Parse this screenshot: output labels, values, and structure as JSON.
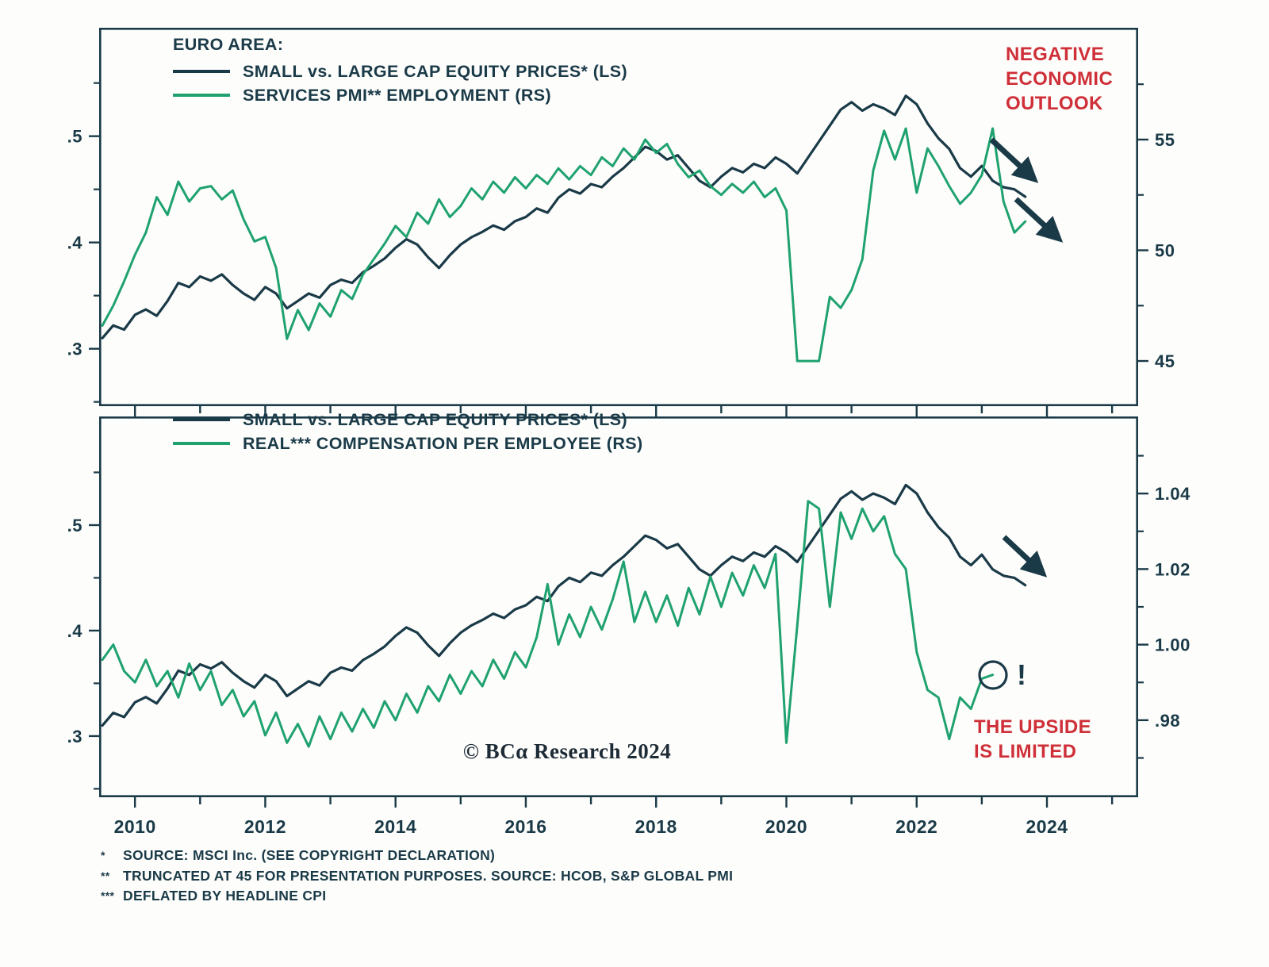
{
  "colors": {
    "frame": "#1a3a48",
    "dark": "#1a3a48",
    "green": "#1fa26f",
    "red": "#cf2f38",
    "watermark": "#1d2b36"
  },
  "watermark": "© BCα Research 2024",
  "annotations": {
    "negative_outlook": [
      "NEGATIVE",
      "ECONOMIC",
      "OUTLOOK"
    ],
    "upside_limited": [
      "THE UPSIDE",
      "IS LIMITED"
    ],
    "exclamation": "!"
  },
  "footnotes": [
    {
      "marker": "*",
      "text": "SOURCE: MSCI Inc. (SEE COPYRIGHT DECLARATION)"
    },
    {
      "marker": "**",
      "text": "TRUNCATED AT 45 FOR PRESENTATION PURPOSES. SOURCE: HCOB, S&P GLOBAL PMI"
    },
    {
      "marker": "***",
      "text": "DEFLATED BY HEADLINE CPI"
    }
  ],
  "chart_data": [
    {
      "type": "line",
      "panel": "top",
      "title": "EURO AREA:",
      "grid": false,
      "legend_position": "top-left",
      "x_range": [
        2009.45,
        2025.4
      ],
      "x_ticks": [
        2010,
        2012,
        2014,
        2016,
        2018,
        2020,
        2022,
        2024
      ],
      "x_minor_ticks": [
        2010,
        2011,
        2012,
        2013,
        2014,
        2015,
        2016,
        2017,
        2018,
        2019,
        2020,
        2021,
        2022,
        2023,
        2024,
        2025
      ],
      "left_axis": {
        "range": [
          0.246,
          0.602
        ],
        "ticks": [
          0.5,
          0.4,
          0.3
        ],
        "labels": [
          ".5",
          ".4",
          ".3"
        ],
        "minor_ticks": [
          0.55,
          0.45,
          0.35,
          0.25
        ]
      },
      "right_axis": {
        "range": [
          42.96,
          60.05
        ],
        "ticks": [
          55,
          50,
          45
        ],
        "labels": [
          "55",
          "50",
          "45"
        ],
        "minor_ticks": [
          57.5,
          52.5,
          47.5
        ]
      },
      "series": [
        {
          "name": "SMALL vs. LARGE CAP EQUITY PRICES* (LS)",
          "axis": "left",
          "color": "dark",
          "data_name": "equity-ratio-line-top",
          "x_start": 2009.5,
          "x_step": 0.16667,
          "values": [
            0.31,
            0.322,
            0.318,
            0.332,
            0.337,
            0.331,
            0.345,
            0.362,
            0.358,
            0.368,
            0.364,
            0.37,
            0.36,
            0.352,
            0.346,
            0.358,
            0.352,
            0.338,
            0.345,
            0.352,
            0.348,
            0.36,
            0.365,
            0.362,
            0.372,
            0.378,
            0.385,
            0.395,
            0.403,
            0.398,
            0.386,
            0.376,
            0.388,
            0.398,
            0.405,
            0.41,
            0.416,
            0.412,
            0.42,
            0.424,
            0.432,
            0.428,
            0.442,
            0.45,
            0.446,
            0.455,
            0.452,
            0.462,
            0.47,
            0.48,
            0.49,
            0.486,
            0.478,
            0.482,
            0.47,
            0.458,
            0.452,
            0.462,
            0.47,
            0.466,
            0.474,
            0.47,
            0.48,
            0.474,
            0.465,
            0.48,
            0.495,
            0.51,
            0.525,
            0.532,
            0.524,
            0.53,
            0.526,
            0.52,
            0.538,
            0.53,
            0.512,
            0.498,
            0.488,
            0.47,
            0.462,
            0.472,
            0.458,
            0.452,
            0.45,
            0.443
          ]
        },
        {
          "name": "SERVICES PMI** EMPLOYMENT (RS)",
          "axis": "right",
          "color": "green",
          "data_name": "services-pmi-line",
          "x_start": 2009.5,
          "x_step": 0.16667,
          "values": [
            46.6,
            47.5,
            48.6,
            49.8,
            50.8,
            52.4,
            51.6,
            53.1,
            52.2,
            52.8,
            52.9,
            52.3,
            52.7,
            51.4,
            50.4,
            50.6,
            49.2,
            46.0,
            47.3,
            46.4,
            47.6,
            47.0,
            48.2,
            47.8,
            48.9,
            49.6,
            50.3,
            51.1,
            50.6,
            51.7,
            51.2,
            52.3,
            51.5,
            52.0,
            52.8,
            52.3,
            53.1,
            52.6,
            53.3,
            52.8,
            53.4,
            53.0,
            53.7,
            53.2,
            53.8,
            53.4,
            54.2,
            53.8,
            54.6,
            54.1,
            55.0,
            54.4,
            54.8,
            53.9,
            53.3,
            53.6,
            52.9,
            52.5,
            53.0,
            52.6,
            53.1,
            52.4,
            52.8,
            51.8,
            45.0,
            45.0,
            45.0,
            47.9,
            47.4,
            48.2,
            49.6,
            53.6,
            55.4,
            54.1,
            55.5,
            52.6,
            54.6,
            53.8,
            52.9,
            52.1,
            52.6,
            53.4,
            55.5,
            52.2,
            50.8,
            51.3
          ]
        }
      ]
    },
    {
      "type": "line",
      "panel": "bottom",
      "title": "",
      "grid": false,
      "legend_position": "top-left",
      "x_range": [
        2009.45,
        2025.4
      ],
      "x_ticks": [
        2010,
        2012,
        2014,
        2016,
        2018,
        2020,
        2022,
        2024
      ],
      "x_tick_labels": [
        "2010",
        "2012",
        "2014",
        "2016",
        "2018",
        "2020",
        "2022",
        "2024"
      ],
      "x_minor_ticks": [
        2010,
        2011,
        2012,
        2013,
        2014,
        2015,
        2016,
        2017,
        2018,
        2019,
        2020,
        2021,
        2022,
        2023,
        2024,
        2025
      ],
      "left_axis": {
        "range": [
          0.242,
          0.603
        ],
        "ticks": [
          0.5,
          0.4,
          0.3
        ],
        "labels": [
          ".5",
          ".4",
          ".3"
        ],
        "minor_ticks": [
          0.55,
          0.45,
          0.35,
          0.25
        ]
      },
      "right_axis": {
        "range": [
          0.9596,
          1.0604
        ],
        "ticks": [
          1.04,
          1.02,
          1.0,
          0.98
        ],
        "labels": [
          "1.04",
          "1.02",
          "1.00",
          ".98"
        ],
        "minor_ticks": [
          1.05,
          1.03,
          1.01,
          0.99,
          0.97
        ]
      },
      "series": [
        {
          "name": "SMALL vs. LARGE CAP EQUITY PRICES* (LS)",
          "axis": "left",
          "color": "dark",
          "data_name": "equity-ratio-line-bottom",
          "x_start": 2009.5,
          "x_step": 0.16667,
          "values": [
            0.31,
            0.322,
            0.318,
            0.332,
            0.337,
            0.331,
            0.345,
            0.362,
            0.358,
            0.368,
            0.364,
            0.37,
            0.36,
            0.352,
            0.346,
            0.358,
            0.352,
            0.338,
            0.345,
            0.352,
            0.348,
            0.36,
            0.365,
            0.362,
            0.372,
            0.378,
            0.385,
            0.395,
            0.403,
            0.398,
            0.386,
            0.376,
            0.388,
            0.398,
            0.405,
            0.41,
            0.416,
            0.412,
            0.42,
            0.424,
            0.432,
            0.428,
            0.442,
            0.45,
            0.446,
            0.455,
            0.452,
            0.462,
            0.47,
            0.48,
            0.49,
            0.486,
            0.478,
            0.482,
            0.47,
            0.458,
            0.452,
            0.462,
            0.47,
            0.466,
            0.474,
            0.47,
            0.48,
            0.474,
            0.465,
            0.48,
            0.495,
            0.51,
            0.525,
            0.532,
            0.524,
            0.53,
            0.526,
            0.52,
            0.538,
            0.53,
            0.512,
            0.498,
            0.488,
            0.47,
            0.462,
            0.472,
            0.458,
            0.452,
            0.45,
            0.443
          ]
        },
        {
          "name": "REAL*** COMPENSATION PER EMPLOYEE (RS)",
          "axis": "right",
          "color": "green",
          "data_name": "real-compensation-line",
          "x_start": 2009.5,
          "x_step": 0.16667,
          "values": [
            0.996,
            1.0,
            0.993,
            0.99,
            0.996,
            0.989,
            0.993,
            0.986,
            0.995,
            0.988,
            0.993,
            0.984,
            0.988,
            0.981,
            0.985,
            0.976,
            0.982,
            0.974,
            0.979,
            0.973,
            0.981,
            0.975,
            0.982,
            0.977,
            0.983,
            0.978,
            0.985,
            0.98,
            0.987,
            0.982,
            0.989,
            0.985,
            0.992,
            0.987,
            0.993,
            0.989,
            0.996,
            0.991,
            0.998,
            0.994,
            1.002,
            1.016,
            1.0,
            1.008,
            1.002,
            1.01,
            1.004,
            1.012,
            1.022,
            1.006,
            1.014,
            1.006,
            1.013,
            1.005,
            1.015,
            1.008,
            1.018,
            1.01,
            1.019,
            1.013,
            1.021,
            1.015,
            1.024,
            0.974,
            1.005,
            1.038,
            1.036,
            1.01,
            1.035,
            1.028,
            1.036,
            1.03,
            1.034,
            1.024,
            1.02,
            0.998,
            0.988,
            0.986,
            0.975,
            0.986,
            0.983,
            0.991,
            0.992
          ]
        }
      ]
    }
  ]
}
